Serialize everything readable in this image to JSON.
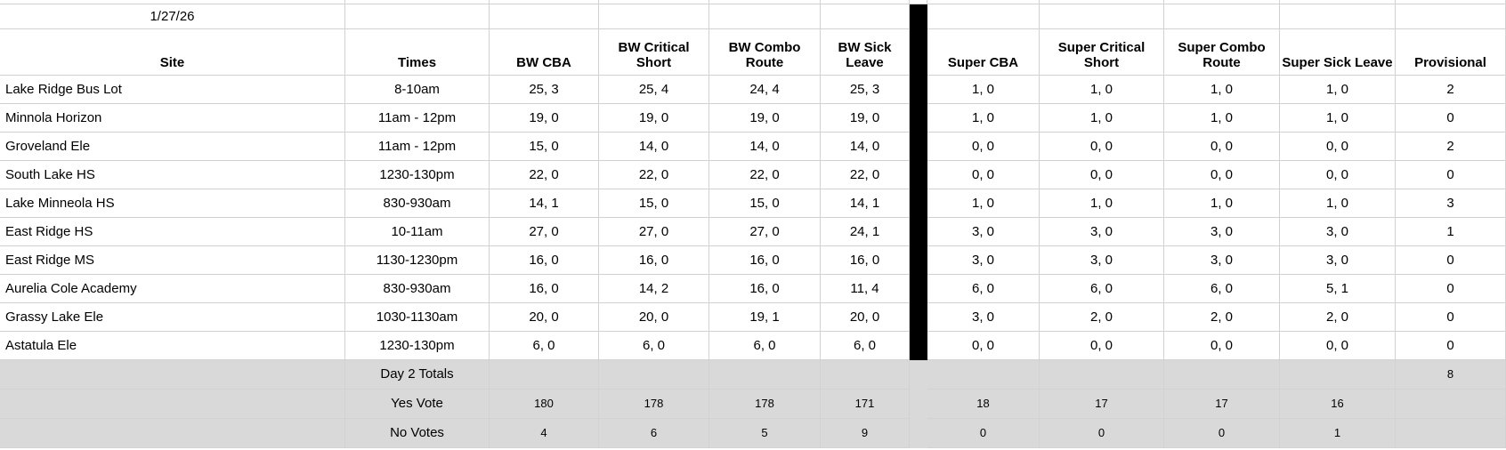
{
  "sheet": {
    "date": "1/27/26",
    "columns": [
      "Site",
      "Times",
      "BW CBA",
      "BW Critical Short",
      "BW Combo Route",
      "BW Sick Leave",
      "Super CBA",
      "Super Critical Short",
      "Super Combo Route",
      "Super Sick Leave",
      "Provisional"
    ],
    "rows": [
      {
        "site": "Lake Ridge Bus Lot",
        "times": "8-10am",
        "values": [
          "25, 3",
          "25, 4",
          "24, 4",
          "25, 3",
          "1, 0",
          "1, 0",
          "1, 0",
          "1, 0",
          "2"
        ]
      },
      {
        "site": "Minnola Horizon",
        "times": "11am - 12pm",
        "values": [
          "19, 0",
          "19, 0",
          "19, 0",
          "19, 0",
          "1, 0",
          "1, 0",
          "1, 0",
          "1, 0",
          "0"
        ]
      },
      {
        "site": "Groveland Ele",
        "times": "11am - 12pm",
        "values": [
          "15, 0",
          "14, 0",
          "14, 0",
          "14, 0",
          "0, 0",
          "0, 0",
          "0, 0",
          "0, 0",
          "2"
        ]
      },
      {
        "site": "South Lake HS",
        "times": "1230-130pm",
        "values": [
          "22, 0",
          "22, 0",
          "22, 0",
          "22, 0",
          "0, 0",
          "0, 0",
          "0, 0",
          "0, 0",
          "0"
        ]
      },
      {
        "site": "Lake Minneola HS",
        "times": "830-930am",
        "values": [
          "14, 1",
          "15, 0",
          "15, 0",
          "14, 1",
          "1, 0",
          "1, 0",
          "1, 0",
          "1, 0",
          "3"
        ]
      },
      {
        "site": "East Ridge HS",
        "times": "10-11am",
        "values": [
          "27, 0",
          "27, 0",
          "27, 0",
          "24, 1",
          "3, 0",
          "3, 0",
          "3, 0",
          "3, 0",
          "1"
        ]
      },
      {
        "site": "East Ridge MS",
        "times": "1130-1230pm",
        "values": [
          "16, 0",
          "16, 0",
          "16, 0",
          "16, 0",
          "3, 0",
          "3, 0",
          "3, 0",
          "3, 0",
          "0"
        ]
      },
      {
        "site": "Aurelia Cole Academy",
        "times": "830-930am",
        "values": [
          "16, 0",
          "14, 2",
          "16, 0",
          "11, 4",
          "6, 0",
          "6, 0",
          "6, 0",
          "5, 1",
          "0"
        ]
      },
      {
        "site": "Grassy Lake Ele",
        "times": "1030-1130am",
        "values": [
          "20, 0",
          "20, 0",
          "19, 1",
          "20, 0",
          "3, 0",
          "2, 0",
          "2, 0",
          "2, 0",
          "0"
        ]
      },
      {
        "site": "Astatula Ele",
        "times": "1230-130pm",
        "values": [
          "6, 0",
          "6, 0",
          "6, 0",
          "6, 0",
          "0, 0",
          "0, 0",
          "0, 0",
          "0, 0",
          "0"
        ]
      }
    ],
    "totals": [
      {
        "label": "Day 2 Totals",
        "values": [
          "",
          "",
          "",
          "",
          "",
          "",
          "",
          "",
          "8"
        ]
      },
      {
        "label": "Yes Vote",
        "values": [
          "180",
          "178",
          "178",
          "171",
          "18",
          "17",
          "17",
          "16",
          ""
        ]
      },
      {
        "label": "No Votes",
        "values": [
          "4",
          "6",
          "5",
          "9",
          "0",
          "0",
          "0",
          "1",
          ""
        ]
      }
    ],
    "colors": {
      "divider": "#000000",
      "totals_background": "#d9d9d9",
      "gridline": "#d2d2d2"
    }
  }
}
